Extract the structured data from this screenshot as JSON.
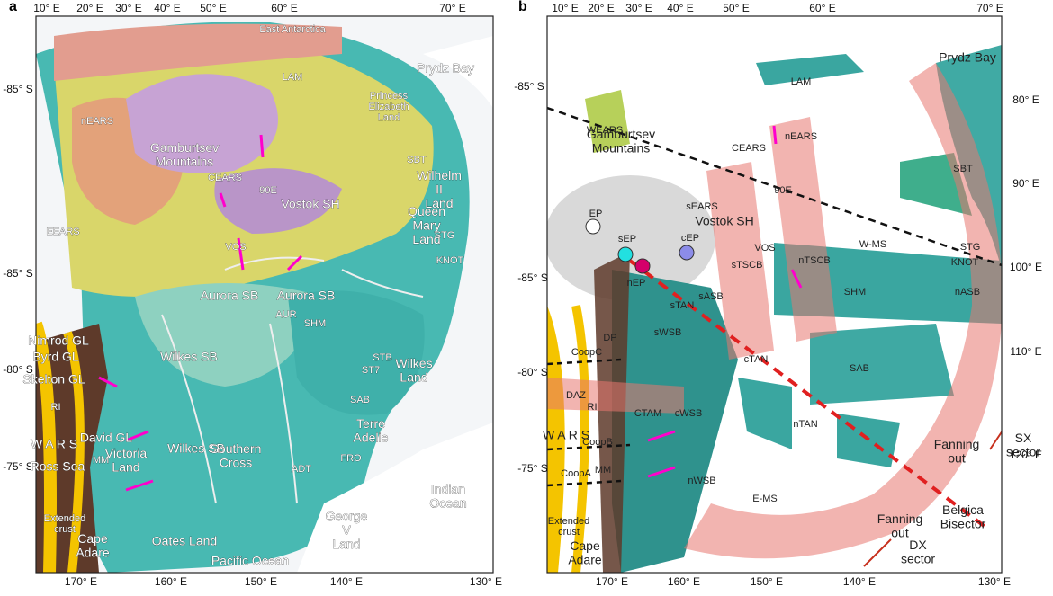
{
  "panels": [
    {
      "letter": "a",
      "top_ticks": [
        "10° E",
        "20° E",
        "30° E",
        "40° E",
        "50° E",
        "60° E",
        "70° E"
      ],
      "bottom_ticks": [
        "170° E",
        "160° E",
        "150° E",
        "140° E",
        "130° E"
      ],
      "left_ticks": [
        "-85° S",
        "-85° S",
        "-80° S",
        "-75° S"
      ],
      "labels": [
        "East Antarctica",
        "Prydz Bay",
        "LAM",
        "nEARS",
        "Princess Elizabeth Land",
        "Gamburtsev Mountains",
        "CEARS",
        "90E",
        "SBT",
        "Wilhelm II Land",
        "Queen Mary Land",
        "EEARS",
        "Vostok SH",
        "VOS",
        "STG",
        "KNOT",
        "Aurora SB",
        "Aurora SB",
        "AUR",
        "SHM",
        "Wilkes Land",
        "STB",
        "ST7",
        "SAB",
        "Terre Adelie",
        "Wilkes SB",
        "Wilkes SB",
        "Nimrod GL",
        "Byrd GL",
        "Skelton GL",
        "RI",
        "W A R S",
        "Ross Sea",
        "David GL",
        "MM",
        "Victoria Land",
        "Extended crust",
        "Cape Adare",
        "Southern Cross",
        "George V Land",
        "Oates Land",
        "Pacific Ocean",
        "Indian Ocean",
        "FRO",
        "ADT"
      ]
    },
    {
      "letter": "b",
      "top_ticks": [
        "10° E",
        "20° E",
        "30° E",
        "40° E",
        "50° E",
        "60° E",
        "70° E"
      ],
      "bottom_ticks": [
        "170° E",
        "160° E",
        "150° E",
        "140° E",
        "130° E"
      ],
      "left_ticks": [
        "-85° S",
        "-85° S",
        "-80° S",
        "-75° S"
      ],
      "right_ticks": [
        "80° E",
        "90° E",
        "100° E",
        "110° E",
        "120° E"
      ],
      "labels": [
        "Prydz Bay",
        "LAM",
        "WEARS",
        "Gamburtsev Mountains",
        "nEARS",
        "CEARS",
        "90E",
        "SBT",
        "sEARS",
        "Vostok SH",
        "VOS",
        "W-MS",
        "STG",
        "KNOT",
        "EP",
        "sEP",
        "cEP",
        "nEP",
        "sTAN",
        "sTSCB",
        "nTSCB",
        "sASB",
        "nASB",
        "SHM",
        "sWSB",
        "CoopC",
        "DP",
        "CoopB",
        "CoopA",
        "DAZ",
        "RI",
        "cTAN",
        "nTAN",
        "cWSB",
        "nWSB",
        "E-MS",
        "SAB",
        "Fanning out",
        "Fanning out",
        "SX sector",
        "DX sector",
        "Belgica Bisector",
        "W A R S",
        "MM",
        "Extended crust",
        "Cape Adare",
        "CTAM"
      ]
    }
  ]
}
